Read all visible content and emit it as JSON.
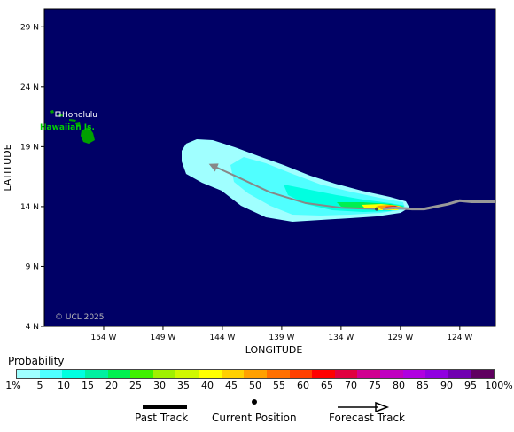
{
  "map": {
    "axes": {
      "xlabel": "LONGITUDE",
      "ylabel": "LATITUDE",
      "lon_ticks": [
        "154 W",
        "149 W",
        "144 W",
        "139 W",
        "134 W",
        "129 W",
        "124 W"
      ],
      "lat_ticks": [
        "29 N",
        "24 N",
        "19 N",
        "14 N",
        "9 N",
        "4 N"
      ],
      "lon_values": [
        -154,
        -149,
        -144,
        -139,
        -134,
        -129,
        -124
      ],
      "lat_values": [
        29,
        24,
        19,
        14,
        9,
        4
      ],
      "lon_range": [
        -159,
        -121
      ],
      "lat_range": [
        4,
        30.5
      ]
    },
    "ocean_color": "#000066",
    "land_color": "#00a000",
    "labels": {
      "city": "Honolulu",
      "islands": "Hawaiian Is.",
      "copyright": "© UCL 2025"
    },
    "past_track": [
      [
        -121,
        14.4
      ],
      [
        -123,
        14.4
      ],
      [
        -124,
        14.5
      ],
      [
        -125,
        14.2
      ],
      [
        -126,
        14.0
      ],
      [
        -127,
        13.8
      ],
      [
        -128,
        13.8
      ],
      [
        -129.5,
        13.9
      ],
      [
        -130.5,
        13.8
      ]
    ],
    "forecast_track": [
      [
        -131,
        13.8
      ],
      [
        -134,
        13.9
      ],
      [
        -137,
        14.3
      ],
      [
        -140,
        15.2
      ],
      [
        -143,
        16.6
      ],
      [
        -145,
        17.5
      ]
    ],
    "current_position": [
      -131,
      13.8
    ]
  },
  "legend": {
    "title": "Probability",
    "labels": [
      "1%",
      "5",
      "10",
      "15",
      "20",
      "25",
      "30",
      "35",
      "40",
      "45",
      "50",
      "55",
      "60",
      "65",
      "70",
      "75",
      "80",
      "85",
      "90",
      "95",
      "100%"
    ],
    "colors": [
      "#a0ffff",
      "#50ffff",
      "#00ffe0",
      "#00f0a0",
      "#00f050",
      "#40f000",
      "#a0f000",
      "#d0f800",
      "#ffff00",
      "#ffd000",
      "#ffa000",
      "#ff7000",
      "#ff4000",
      "#ff0000",
      "#e00040",
      "#d00090",
      "#c000c0",
      "#b000e0",
      "#9000e0",
      "#7000b0",
      "#600060"
    ],
    "track": {
      "past_label": "Past Track",
      "current_label": "Current Position",
      "forecast_label": "Forecast Track"
    }
  }
}
